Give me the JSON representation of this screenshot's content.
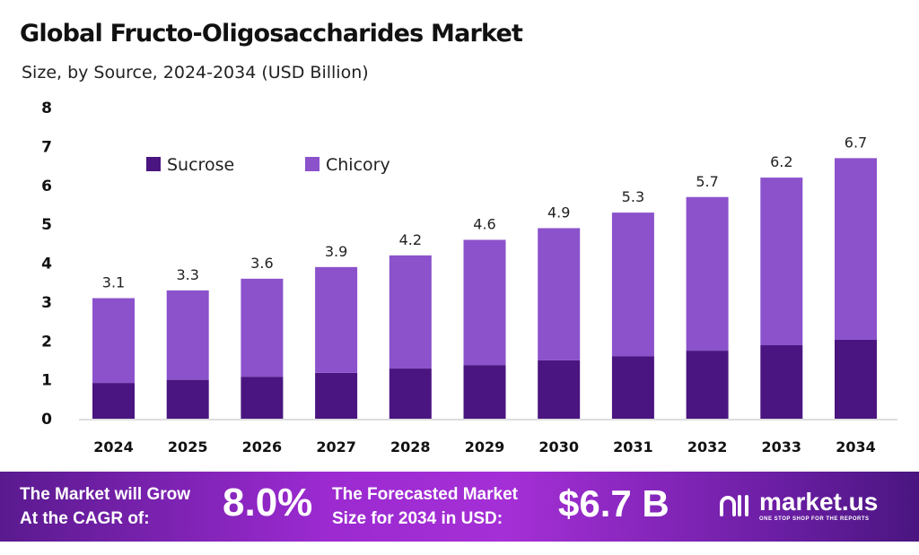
{
  "chart_data": {
    "type": "bar",
    "stacked": true,
    "title": "Global Fructo-Oligosaccharides Market",
    "subtitle": "Size, by Source, 2024-2034 (USD Billion)",
    "categories": [
      "2024",
      "2025",
      "2026",
      "2027",
      "2028",
      "2029",
      "2030",
      "2031",
      "2032",
      "2033",
      "2034"
    ],
    "series": [
      {
        "name": "Sucrose",
        "color": "#4a1580",
        "values": [
          0.92,
          1.0,
          1.08,
          1.18,
          1.29,
          1.38,
          1.5,
          1.61,
          1.75,
          1.89,
          2.03
        ]
      },
      {
        "name": "Chicory",
        "color": "#8b52cc",
        "values": [
          2.18,
          2.3,
          2.52,
          2.72,
          2.91,
          3.22,
          3.4,
          3.69,
          3.95,
          4.31,
          4.67
        ]
      }
    ],
    "totals": [
      "3.1",
      "3.3",
      "3.6",
      "3.9",
      "4.2",
      "4.6",
      "4.9",
      "5.3",
      "5.7",
      "6.2",
      "6.7"
    ],
    "ylim": [
      0,
      8
    ],
    "yticks": [
      0,
      1,
      2,
      3,
      4,
      5,
      6,
      7,
      8
    ],
    "grid": false,
    "legend": "top-left"
  },
  "banner": {
    "cagr_text_1": "The Market will Grow",
    "cagr_text_2": "At the CAGR of:",
    "cagr": "8.0%",
    "size_text_1": "The Forecasted Market",
    "size_text_2": "Size for 2034 in USD:",
    "size": "$6.7 B",
    "logo_name": "market.us",
    "logo_tagline": "ONE STOP SHOP FOR THE REPORTS"
  }
}
